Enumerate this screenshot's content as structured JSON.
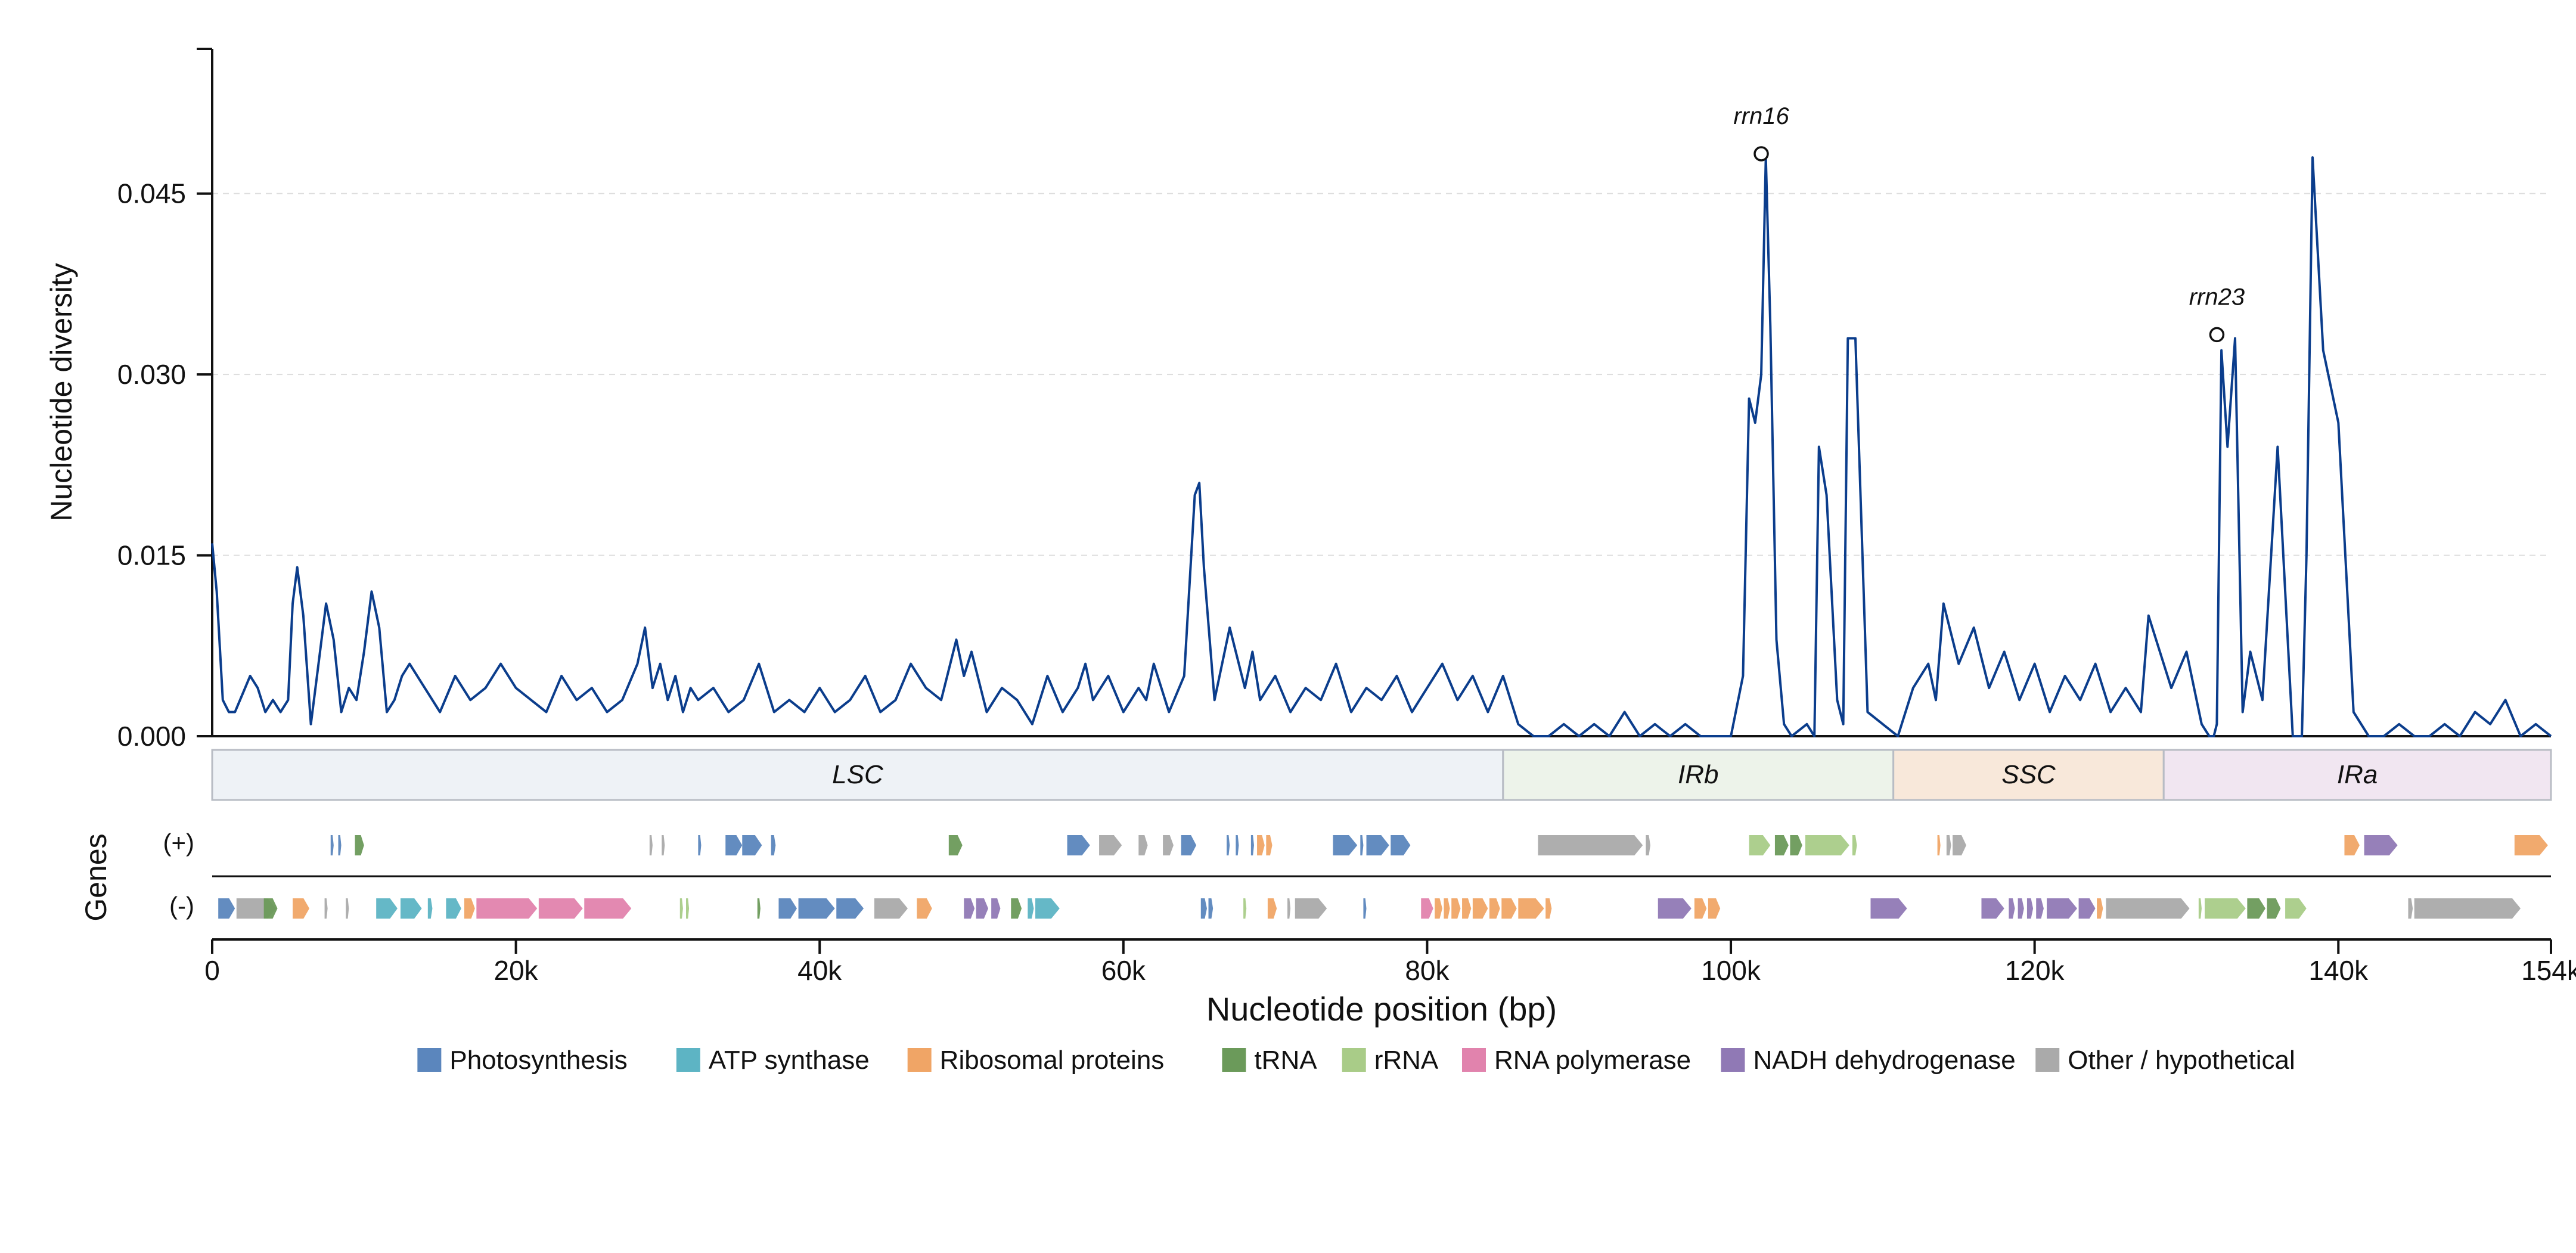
{
  "chart_data": {
    "type": "line",
    "ylabel": "Nucleotide diversity",
    "xlabel": "Nucleotide position (bp)",
    "genes_label": "Genes",
    "strand_plus_label": "(+)",
    "strand_minus_label": "(-)",
    "xlim": [
      0,
      154000
    ],
    "ylim": [
      0,
      0.057
    ],
    "y_ticks": [
      {
        "v": 0.0,
        "label": "0.000"
      },
      {
        "v": 0.015,
        "label": "0.015"
      },
      {
        "v": 0.03,
        "label": "0.030"
      },
      {
        "v": 0.045,
        "label": "0.045"
      }
    ],
    "x_ticks": [
      {
        "v": 0,
        "label": "0"
      },
      {
        "v": 20000,
        "label": "20k"
      },
      {
        "v": 40000,
        "label": "40k"
      },
      {
        "v": 60000,
        "label": "60k"
      },
      {
        "v": 80000,
        "label": "80k"
      },
      {
        "v": 100000,
        "label": "100k"
      },
      {
        "v": 120000,
        "label": "120k"
      },
      {
        "v": 140000,
        "label": "140k"
      },
      {
        "v": 154000,
        "label": "154k"
      }
    ],
    "grid": "y dashed",
    "line_color": "#0b3d8c",
    "series_x": [
      0,
      300,
      700,
      1100,
      1500,
      2000,
      2500,
      3000,
      3500,
      4000,
      4500,
      5000,
      5300,
      5600,
      6000,
      6500,
      7000,
      7500,
      8000,
      8500,
      9000,
      9500,
      10000,
      10500,
      11000,
      11500,
      12000,
      12500,
      13000,
      14000,
      15000,
      16000,
      17000,
      18000,
      19000,
      20000,
      21000,
      22000,
      23000,
      24000,
      25000,
      26000,
      27000,
      28000,
      28500,
      29000,
      29500,
      30000,
      30500,
      31000,
      31500,
      32000,
      33000,
      34000,
      35000,
      36000,
      37000,
      38000,
      39000,
      40000,
      41000,
      42000,
      43000,
      44000,
      45000,
      46000,
      47000,
      48000,
      49000,
      49500,
      50000,
      51000,
      52000,
      53000,
      54000,
      55000,
      56000,
      57000,
      57500,
      58000,
      59000,
      60000,
      61000,
      61500,
      62000,
      63000,
      64000,
      64700,
      65000,
      65300,
      66000,
      67000,
      68000,
      68500,
      69000,
      70000,
      71000,
      72000,
      73000,
      74000,
      75000,
      76000,
      77000,
      78000,
      79000,
      80000,
      81000,
      82000,
      83000,
      84000,
      85000,
      86000,
      87000,
      88000,
      89000,
      90000,
      91000,
      92000,
      93000,
      94000,
      95000,
      96000,
      97000,
      98000,
      99000,
      100000,
      100800,
      101200,
      101600,
      102000,
      102300,
      102600,
      103000,
      103500,
      104000,
      105000,
      105500,
      105800,
      106300,
      107000,
      107400,
      107700,
      108200,
      109000,
      110000,
      111000,
      112000,
      113000,
      113500,
      114000,
      115000,
      116000,
      117000,
      118000,
      119000,
      120000,
      121000,
      122000,
      123000,
      124000,
      125000,
      126000,
      127000,
      127500,
      128000,
      129000,
      130000,
      131000,
      131500,
      131800,
      132000,
      132300,
      132700,
      133200,
      133700,
      134200,
      135000,
      136000,
      137000,
      137400,
      137600,
      137900,
      138300,
      139000,
      140000,
      141000,
      142000,
      143000,
      144000,
      145000,
      146000,
      147000,
      148000,
      149000,
      150000,
      151000,
      152000,
      153000,
      154000
    ],
    "series_y": [
      0.016,
      0.012,
      0.003,
      0.002,
      0.002,
      0.0035,
      0.005,
      0.004,
      0.002,
      0.003,
      0.002,
      0.003,
      0.011,
      0.014,
      0.01,
      0.001,
      0.006,
      0.011,
      0.008,
      0.002,
      0.004,
      0.003,
      0.007,
      0.012,
      0.009,
      0.002,
      0.003,
      0.005,
      0.006,
      0.004,
      0.002,
      0.005,
      0.003,
      0.004,
      0.006,
      0.004,
      0.003,
      0.002,
      0.005,
      0.003,
      0.004,
      0.002,
      0.003,
      0.006,
      0.009,
      0.004,
      0.006,
      0.003,
      0.005,
      0.002,
      0.004,
      0.003,
      0.004,
      0.002,
      0.003,
      0.006,
      0.002,
      0.003,
      0.002,
      0.004,
      0.002,
      0.003,
      0.005,
      0.002,
      0.003,
      0.006,
      0.004,
      0.003,
      0.008,
      0.005,
      0.007,
      0.002,
      0.004,
      0.003,
      0.001,
      0.005,
      0.002,
      0.004,
      0.006,
      0.003,
      0.005,
      0.002,
      0.004,
      0.003,
      0.006,
      0.002,
      0.005,
      0.02,
      0.021,
      0.014,
      0.003,
      0.009,
      0.004,
      0.007,
      0.003,
      0.005,
      0.002,
      0.004,
      0.003,
      0.006,
      0.002,
      0.004,
      0.003,
      0.005,
      0.002,
      0.004,
      0.006,
      0.003,
      0.005,
      0.002,
      0.005,
      0.001,
      0.0,
      0.0,
      0.001,
      0.0,
      0.001,
      0.0,
      0.002,
      0.0,
      0.001,
      0.0,
      0.001,
      0.0,
      0.0,
      0.0,
      0.005,
      0.028,
      0.026,
      0.03,
      0.048,
      0.034,
      0.008,
      0.001,
      0.0,
      0.001,
      0.0,
      0.024,
      0.02,
      0.003,
      0.001,
      0.033,
      0.033,
      0.002,
      0.001,
      0.0,
      0.004,
      0.006,
      0.003,
      0.011,
      0.006,
      0.009,
      0.004,
      0.007,
      0.003,
      0.006,
      0.002,
      0.005,
      0.003,
      0.006,
      0.002,
      0.004,
      0.002,
      0.01,
      0.008,
      0.004,
      0.007,
      0.001,
      0.0,
      0.0,
      0.001,
      0.032,
      0.024,
      0.033,
      0.002,
      0.007,
      0.003,
      0.024,
      0.0,
      0.0,
      0.0,
      0.015,
      0.048,
      0.032,
      0.026,
      0.002,
      0.0,
      0.0,
      0.001,
      0.0,
      0.0,
      0.001,
      0.0,
      0.002,
      0.001,
      0.003,
      0.0,
      0.001,
      0.0,
      0.001
    ],
    "annotations": [
      {
        "label": "rrn16",
        "x": 102000,
        "y": 0.0483
      },
      {
        "label": "rrn23",
        "x": 132000,
        "y": 0.0333
      }
    ],
    "regions": [
      {
        "label": "LSC",
        "start": 0,
        "end": 85000,
        "color": "#eef2f6"
      },
      {
        "label": "IRb",
        "start": 85000,
        "end": 110700,
        "color": "#edf3ea"
      },
      {
        "label": "SSC",
        "start": 110700,
        "end": 128500,
        "color": "#f8e8da"
      },
      {
        "label": "IRa",
        "start": 128500,
        "end": 154000,
        "color": "#f1e6f1"
      }
    ],
    "legend": [
      {
        "cat": "photo",
        "label": "Photosynthesis",
        "color": "#5b86bd"
      },
      {
        "cat": "atp",
        "label": "ATP synthase",
        "color": "#5db4c4"
      },
      {
        "cat": "ribo",
        "label": "Ribosomal proteins",
        "color": "#f0a566"
      },
      {
        "cat": "trna",
        "label": "tRNA",
        "color": "#6b9a5a"
      },
      {
        "cat": "rrna",
        "label": "rRNA",
        "color": "#a9cc88"
      },
      {
        "cat": "rnap",
        "label": "RNA polymerase",
        "color": "#e183ad"
      },
      {
        "cat": "ndh",
        "label": "NADH dehydrogenase",
        "color": "#9079b5"
      },
      {
        "cat": "other",
        "label": "Other / hypothetical",
        "color": "#aaaaaa"
      }
    ],
    "genes_plus": [
      {
        "s": 7800,
        "e": 8000,
        "c": "photo"
      },
      {
        "s": 8300,
        "e": 8500,
        "c": "photo"
      },
      {
        "s": 9400,
        "e": 10000,
        "c": "trna"
      },
      {
        "s": 28800,
        "e": 29000,
        "c": "other"
      },
      {
        "s": 29600,
        "e": 29800,
        "c": "other"
      },
      {
        "s": 32000,
        "e": 32200,
        "c": "photo"
      },
      {
        "s": 33800,
        "e": 34900,
        "c": "photo"
      },
      {
        "s": 34900,
        "e": 36200,
        "c": "photo"
      },
      {
        "s": 36800,
        "e": 37100,
        "c": "photo"
      },
      {
        "s": 48500,
        "e": 49400,
        "c": "trna"
      },
      {
        "s": 56300,
        "e": 57800,
        "c": "photo"
      },
      {
        "s": 58400,
        "e": 59900,
        "c": "other"
      },
      {
        "s": 61000,
        "e": 61600,
        "c": "other"
      },
      {
        "s": 62600,
        "e": 63300,
        "c": "other"
      },
      {
        "s": 63800,
        "e": 64800,
        "c": "photo"
      },
      {
        "s": 66800,
        "e": 67000,
        "c": "photo"
      },
      {
        "s": 67400,
        "e": 67600,
        "c": "photo"
      },
      {
        "s": 68400,
        "e": 68600,
        "c": "photo"
      },
      {
        "s": 68800,
        "e": 69300,
        "c": "ribo"
      },
      {
        "s": 69400,
        "e": 69800,
        "c": "ribo"
      },
      {
        "s": 73800,
        "e": 75400,
        "c": "photo"
      },
      {
        "s": 75600,
        "e": 75800,
        "c": "photo"
      },
      {
        "s": 76000,
        "e": 77500,
        "c": "photo"
      },
      {
        "s": 77600,
        "e": 78900,
        "c": "photo"
      },
      {
        "s": 87300,
        "e": 94200,
        "c": "other"
      },
      {
        "s": 94400,
        "e": 94700,
        "c": "other"
      },
      {
        "s": 101200,
        "e": 102600,
        "c": "rrna"
      },
      {
        "s": 102900,
        "e": 103800,
        "c": "trna"
      },
      {
        "s": 103900,
        "e": 104700,
        "c": "trna"
      },
      {
        "s": 104900,
        "e": 107800,
        "c": "rrna"
      },
      {
        "s": 108000,
        "e": 108300,
        "c": "rrna"
      },
      {
        "s": 113600,
        "e": 113800,
        "c": "ribo"
      },
      {
        "s": 114200,
        "e": 114500,
        "c": "other"
      },
      {
        "s": 114600,
        "e": 115500,
        "c": "other"
      },
      {
        "s": 140400,
        "e": 141400,
        "c": "ribo"
      },
      {
        "s": 141700,
        "e": 143900,
        "c": "ndh"
      },
      {
        "s": 151600,
        "e": 153800,
        "c": "ribo"
      }
    ],
    "genes_minus": [
      {
        "s": 400,
        "e": 1500,
        "c": "photo"
      },
      {
        "s": 1600,
        "e": 4200,
        "c": "other"
      },
      {
        "s": 3400,
        "e": 4300,
        "c": "trna"
      },
      {
        "s": 5300,
        "e": 6400,
        "c": "ribo"
      },
      {
        "s": 7400,
        "e": 7600,
        "c": "other"
      },
      {
        "s": 8800,
        "e": 9000,
        "c": "other"
      },
      {
        "s": 10800,
        "e": 12200,
        "c": "atp"
      },
      {
        "s": 12400,
        "e": 13800,
        "c": "atp"
      },
      {
        "s": 14200,
        "e": 14500,
        "c": "atp"
      },
      {
        "s": 15400,
        "e": 16400,
        "c": "atp"
      },
      {
        "s": 16600,
        "e": 17300,
        "c": "ribo"
      },
      {
        "s": 17400,
        "e": 21400,
        "c": "rnap"
      },
      {
        "s": 21500,
        "e": 24400,
        "c": "rnap"
      },
      {
        "s": 24500,
        "e": 27600,
        "c": "rnap"
      },
      {
        "s": 30800,
        "e": 31000,
        "c": "rrna"
      },
      {
        "s": 31200,
        "e": 31400,
        "c": "rrna"
      },
      {
        "s": 35900,
        "e": 36100,
        "c": "trna"
      },
      {
        "s": 37300,
        "e": 38500,
        "c": "photo"
      },
      {
        "s": 38600,
        "e": 41000,
        "c": "photo"
      },
      {
        "s": 41100,
        "e": 42900,
        "c": "photo"
      },
      {
        "s": 43600,
        "e": 45800,
        "c": "other"
      },
      {
        "s": 46400,
        "e": 47400,
        "c": "ribo"
      },
      {
        "s": 49500,
        "e": 50200,
        "c": "ndh"
      },
      {
        "s": 50300,
        "e": 51100,
        "c": "ndh"
      },
      {
        "s": 51300,
        "e": 51900,
        "c": "ndh"
      },
      {
        "s": 52600,
        "e": 53300,
        "c": "trna"
      },
      {
        "s": 53700,
        "e": 54100,
        "c": "atp"
      },
      {
        "s": 54200,
        "e": 55800,
        "c": "atp"
      },
      {
        "s": 65100,
        "e": 65500,
        "c": "photo"
      },
      {
        "s": 65600,
        "e": 65900,
        "c": "photo"
      },
      {
        "s": 67900,
        "e": 68100,
        "c": "rrna"
      },
      {
        "s": 69500,
        "e": 70100,
        "c": "ribo"
      },
      {
        "s": 70800,
        "e": 71000,
        "c": "other"
      },
      {
        "s": 71300,
        "e": 73400,
        "c": "other"
      },
      {
        "s": 75800,
        "e": 76000,
        "c": "photo"
      },
      {
        "s": 79600,
        "e": 80400,
        "c": "rnap"
      },
      {
        "s": 80500,
        "e": 81000,
        "c": "ribo"
      },
      {
        "s": 81100,
        "e": 81500,
        "c": "ribo"
      },
      {
        "s": 81600,
        "e": 82200,
        "c": "ribo"
      },
      {
        "s": 82300,
        "e": 82900,
        "c": "ribo"
      },
      {
        "s": 83000,
        "e": 84000,
        "c": "ribo"
      },
      {
        "s": 84100,
        "e": 84800,
        "c": "ribo"
      },
      {
        "s": 84900,
        "e": 85900,
        "c": "ribo"
      },
      {
        "s": 86000,
        "e": 87700,
        "c": "ribo"
      },
      {
        "s": 87800,
        "e": 88200,
        "c": "ribo"
      },
      {
        "s": 95200,
        "e": 97400,
        "c": "ndh"
      },
      {
        "s": 97600,
        "e": 98400,
        "c": "ribo"
      },
      {
        "s": 98500,
        "e": 99300,
        "c": "ribo"
      },
      {
        "s": 109200,
        "e": 111600,
        "c": "ndh"
      },
      {
        "s": 116500,
        "e": 118000,
        "c": "ndh"
      },
      {
        "s": 118300,
        "e": 118700,
        "c": "ndh"
      },
      {
        "s": 118900,
        "e": 119300,
        "c": "ndh"
      },
      {
        "s": 119500,
        "e": 119900,
        "c": "ndh"
      },
      {
        "s": 120100,
        "e": 120600,
        "c": "ndh"
      },
      {
        "s": 120800,
        "e": 122800,
        "c": "ndh"
      },
      {
        "s": 122900,
        "e": 124000,
        "c": "ndh"
      },
      {
        "s": 124100,
        "e": 124500,
        "c": "ribo"
      },
      {
        "s": 124700,
        "e": 130200,
        "c": "other"
      },
      {
        "s": 130800,
        "e": 131000,
        "c": "rrna"
      },
      {
        "s": 131200,
        "e": 133900,
        "c": "rrna"
      },
      {
        "s": 134000,
        "e": 135200,
        "c": "trna"
      },
      {
        "s": 135300,
        "e": 136200,
        "c": "trna"
      },
      {
        "s": 136500,
        "e": 137900,
        "c": "rrna"
      },
      {
        "s": 144600,
        "e": 144900,
        "c": "other"
      },
      {
        "s": 145000,
        "e": 152000,
        "c": "other"
      }
    ]
  }
}
